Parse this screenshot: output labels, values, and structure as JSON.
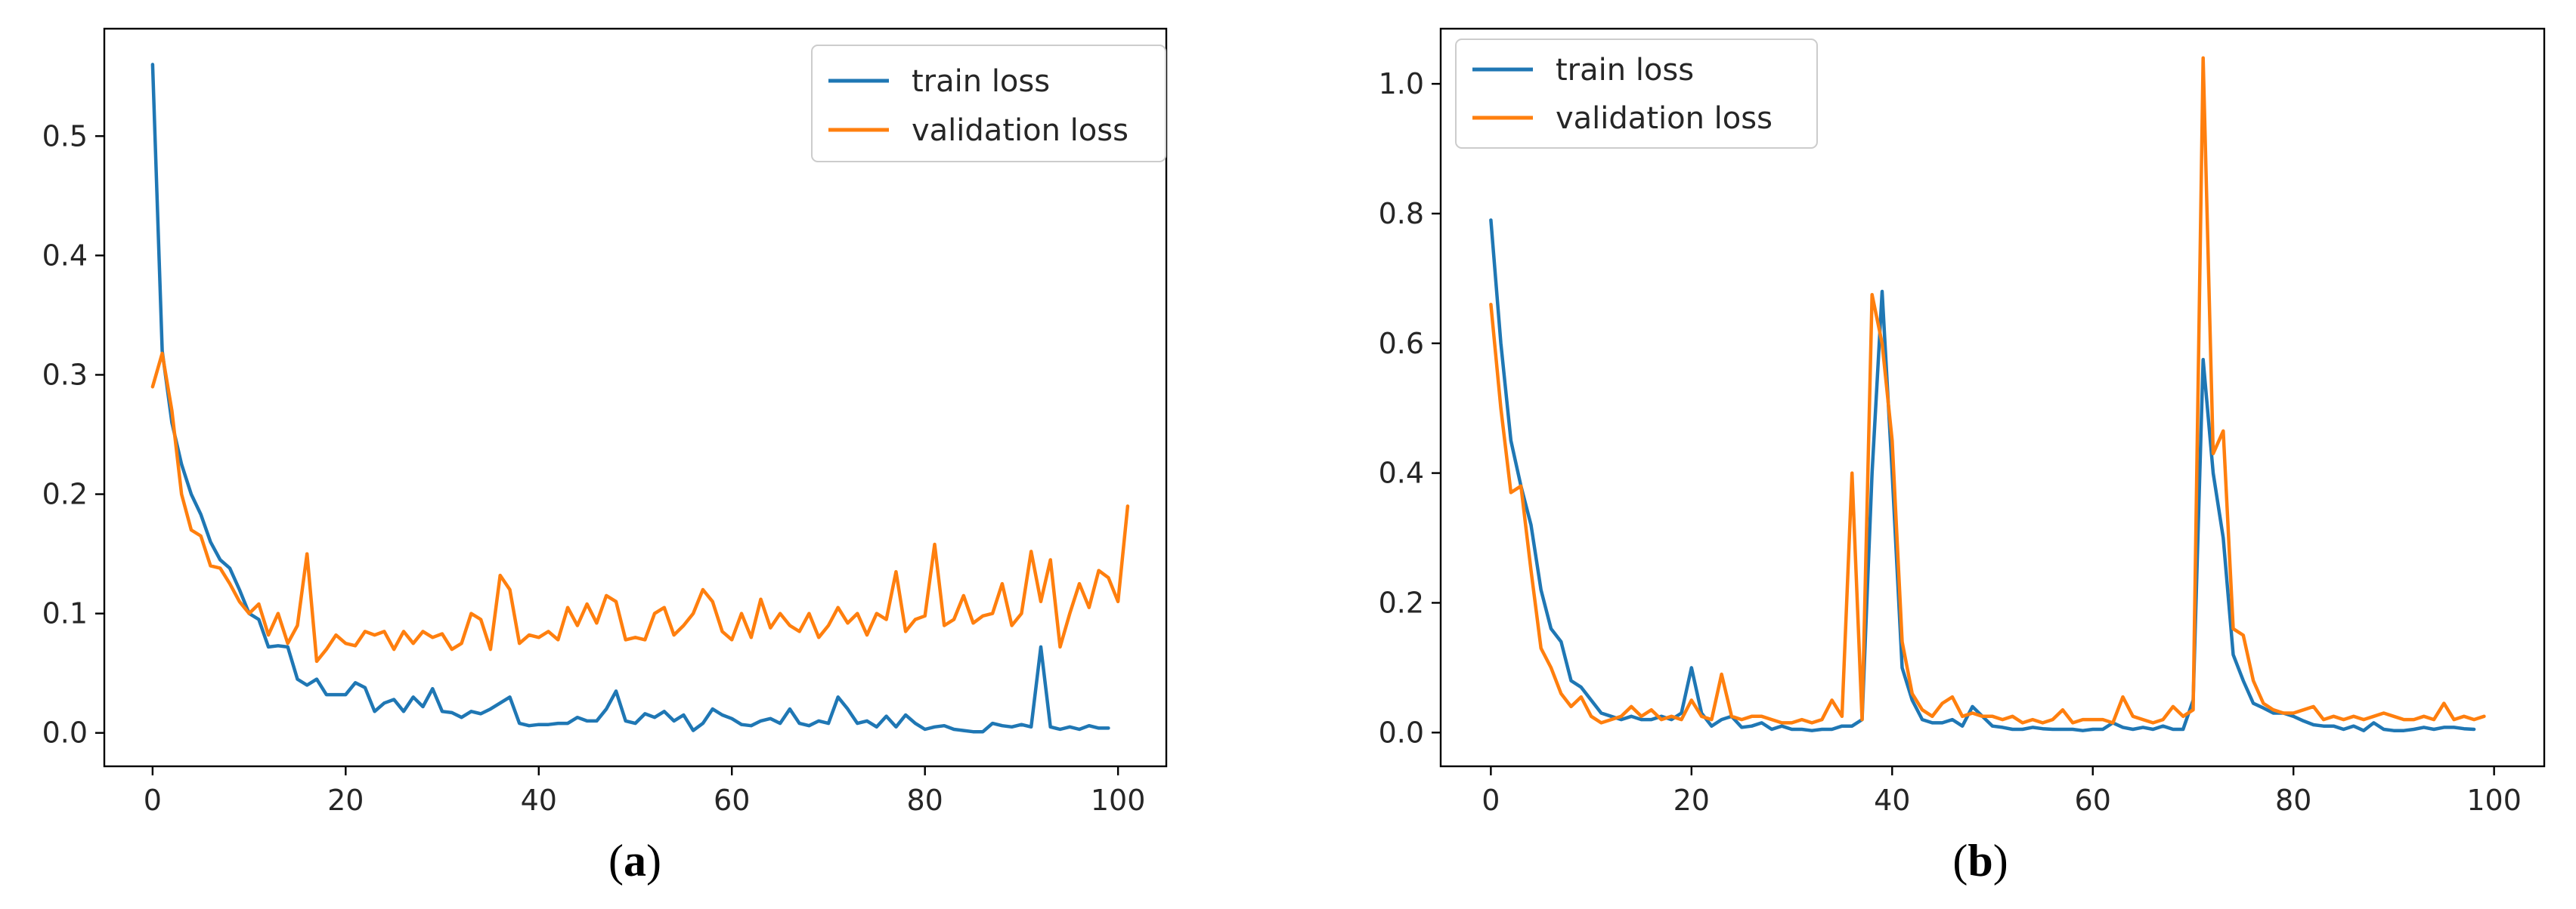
{
  "panels": [
    {
      "caption": {
        "open": "(",
        "letter": "a",
        "close": ")"
      },
      "chart_data": {
        "type": "line",
        "title": "",
        "xlabel": "",
        "ylabel": "",
        "xlim": [
          -5,
          105
        ],
        "ylim": [
          -0.028,
          0.59
        ],
        "xticks": [
          0,
          20,
          40,
          60,
          80,
          100
        ],
        "yticks": [
          0.0,
          0.1,
          0.2,
          0.3,
          0.4,
          0.5
        ],
        "ytick_labels": [
          "0.0",
          "0.1",
          "0.2",
          "0.3",
          "0.4",
          "0.5"
        ],
        "legend_position": "top-right",
        "series": [
          {
            "name": "train loss",
            "color": "#1f77b4",
            "values": [
              0.56,
              0.32,
              0.26,
              0.225,
              0.2,
              0.183,
              0.16,
              0.145,
              0.138,
              0.12,
              0.1,
              0.095,
              0.072,
              0.073,
              0.072,
              0.045,
              0.04,
              0.045,
              0.032,
              0.032,
              0.032,
              0.042,
              0.038,
              0.018,
              0.025,
              0.028,
              0.018,
              0.03,
              0.022,
              0.037,
              0.018,
              0.017,
              0.013,
              0.018,
              0.016,
              0.02,
              0.025,
              0.03,
              0.008,
              0.006,
              0.007,
              0.007,
              0.008,
              0.008,
              0.013,
              0.01,
              0.01,
              0.02,
              0.035,
              0.01,
              0.008,
              0.016,
              0.013,
              0.018,
              0.01,
              0.015,
              0.002,
              0.008,
              0.02,
              0.015,
              0.012,
              0.007,
              0.006,
              0.01,
              0.012,
              0.008,
              0.02,
              0.008,
              0.006,
              0.01,
              0.008,
              0.03,
              0.02,
              0.008,
              0.01,
              0.005,
              0.014,
              0.005,
              0.015,
              0.008,
              0.003,
              0.005,
              0.006,
              0.003,
              0.002,
              0.001,
              0.001,
              0.008,
              0.006,
              0.005,
              0.007,
              0.005,
              0.072,
              0.005,
              0.003,
              0.005,
              0.003,
              0.006,
              0.004,
              0.004
            ]
          },
          {
            "name": "validation loss",
            "color": "#ff7f0e",
            "values": [
              0.29,
              0.318,
              0.27,
              0.2,
              0.17,
              0.165,
              0.14,
              0.138,
              0.125,
              0.11,
              0.1,
              0.108,
              0.082,
              0.1,
              0.075,
              0.09,
              0.15,
              0.06,
              0.07,
              0.082,
              0.075,
              0.073,
              0.085,
              0.082,
              0.085,
              0.07,
              0.085,
              0.075,
              0.085,
              0.08,
              0.083,
              0.07,
              0.075,
              0.1,
              0.095,
              0.07,
              0.132,
              0.12,
              0.075,
              0.082,
              0.08,
              0.085,
              0.078,
              0.105,
              0.09,
              0.108,
              0.092,
              0.115,
              0.11,
              0.078,
              0.08,
              0.078,
              0.1,
              0.105,
              0.082,
              0.09,
              0.1,
              0.12,
              0.11,
              0.085,
              0.078,
              0.1,
              0.08,
              0.112,
              0.088,
              0.1,
              0.09,
              0.085,
              0.1,
              0.08,
              0.09,
              0.105,
              0.092,
              0.1,
              0.082,
              0.1,
              0.095,
              0.135,
              0.085,
              0.095,
              0.098,
              0.158,
              0.09,
              0.095,
              0.115,
              0.092,
              0.098,
              0.1,
              0.125,
              0.09,
              0.1,
              0.152,
              0.11,
              0.145,
              0.072,
              0.1,
              0.125,
              0.105,
              0.136,
              0.13,
              0.11,
              0.19
            ]
          }
        ]
      }
    },
    {
      "caption": {
        "open": "(",
        "letter": "b",
        "close": ")"
      },
      "chart_data": {
        "type": "line",
        "title": "",
        "xlabel": "",
        "ylabel": "",
        "xlim": [
          -5,
          105
        ],
        "ylim": [
          -0.052,
          1.085
        ],
        "xticks": [
          0,
          20,
          40,
          60,
          80,
          100
        ],
        "yticks": [
          0.0,
          0.2,
          0.4,
          0.6,
          0.8,
          1.0
        ],
        "ytick_labels": [
          "0.0",
          "0.2",
          "0.4",
          "0.6",
          "0.8",
          "1.0"
        ],
        "legend_position": "top-left",
        "series": [
          {
            "name": "train loss",
            "color": "#1f77b4",
            "values": [
              0.79,
              0.6,
              0.45,
              0.38,
              0.32,
              0.22,
              0.16,
              0.14,
              0.08,
              0.07,
              0.05,
              0.03,
              0.025,
              0.02,
              0.025,
              0.02,
              0.02,
              0.025,
              0.02,
              0.03,
              0.1,
              0.03,
              0.01,
              0.02,
              0.025,
              0.008,
              0.01,
              0.015,
              0.005,
              0.01,
              0.005,
              0.005,
              0.003,
              0.005,
              0.005,
              0.01,
              0.01,
              0.02,
              0.4,
              0.68,
              0.4,
              0.1,
              0.05,
              0.02,
              0.015,
              0.015,
              0.02,
              0.01,
              0.04,
              0.025,
              0.01,
              0.008,
              0.005,
              0.005,
              0.008,
              0.006,
              0.005,
              0.005,
              0.005,
              0.003,
              0.005,
              0.005,
              0.015,
              0.008,
              0.005,
              0.008,
              0.005,
              0.01,
              0.005,
              0.005,
              0.05,
              0.575,
              0.4,
              0.3,
              0.12,
              0.08,
              0.045,
              0.038,
              0.03,
              0.03,
              0.025,
              0.018,
              0.012,
              0.01,
              0.01,
              0.005,
              0.01,
              0.003,
              0.015,
              0.005,
              0.003,
              0.003,
              0.005,
              0.008,
              0.005,
              0.008,
              0.008,
              0.006,
              0.005
            ]
          },
          {
            "name": "validation loss",
            "color": "#ff7f0e",
            "values": [
              0.66,
              0.5,
              0.37,
              0.38,
              0.25,
              0.13,
              0.1,
              0.06,
              0.04,
              0.055,
              0.025,
              0.015,
              0.02,
              0.025,
              0.04,
              0.025,
              0.035,
              0.02,
              0.025,
              0.02,
              0.05,
              0.025,
              0.02,
              0.09,
              0.025,
              0.02,
              0.025,
              0.025,
              0.02,
              0.015,
              0.015,
              0.02,
              0.015,
              0.02,
              0.05,
              0.025,
              0.4,
              0.02,
              0.675,
              0.6,
              0.45,
              0.14,
              0.06,
              0.035,
              0.025,
              0.045,
              0.055,
              0.025,
              0.03,
              0.025,
              0.025,
              0.02,
              0.025,
              0.015,
              0.02,
              0.015,
              0.02,
              0.035,
              0.015,
              0.02,
              0.02,
              0.02,
              0.015,
              0.055,
              0.025,
              0.02,
              0.015,
              0.02,
              0.04,
              0.025,
              0.035,
              1.04,
              0.43,
              0.465,
              0.16,
              0.15,
              0.08,
              0.045,
              0.035,
              0.03,
              0.03,
              0.035,
              0.04,
              0.02,
              0.025,
              0.02,
              0.025,
              0.02,
              0.025,
              0.03,
              0.025,
              0.02,
              0.02,
              0.025,
              0.02,
              0.045,
              0.02,
              0.025,
              0.02,
              0.025
            ]
          }
        ]
      }
    }
  ]
}
